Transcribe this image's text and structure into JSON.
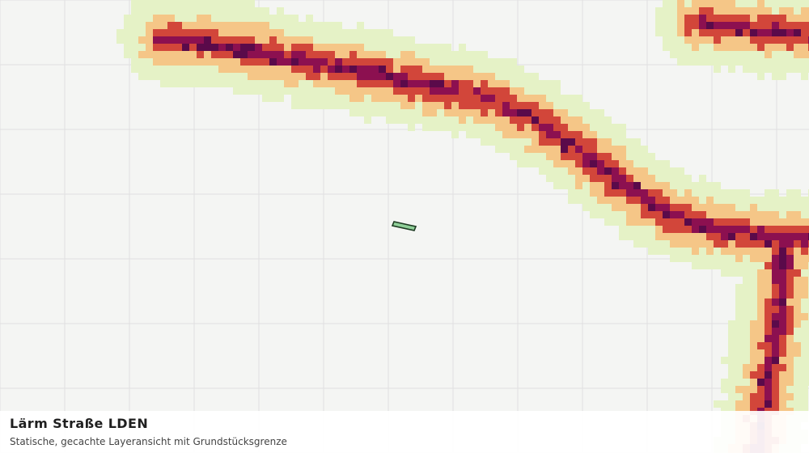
{
  "caption": {
    "title": "Lärm Straße LDEN",
    "subtitle": "Statische, gecachte Layeransicht mit Grundstücksgrenze"
  },
  "map": {
    "background_color": "#f4f5f3",
    "grid_color": "#e0e0e0",
    "noise_classes": [
      {
        "level": 1,
        "color": "#e5f2c6"
      },
      {
        "level": 2,
        "color": "#f5c687"
      },
      {
        "level": 3,
        "color": "#d2463a"
      },
      {
        "level": 4,
        "color": "#8c1050"
      },
      {
        "level": 5,
        "color": "#5a0a4a"
      }
    ],
    "parcel": {
      "fill": "#8fcf98",
      "stroke": "#1d3b22"
    }
  }
}
